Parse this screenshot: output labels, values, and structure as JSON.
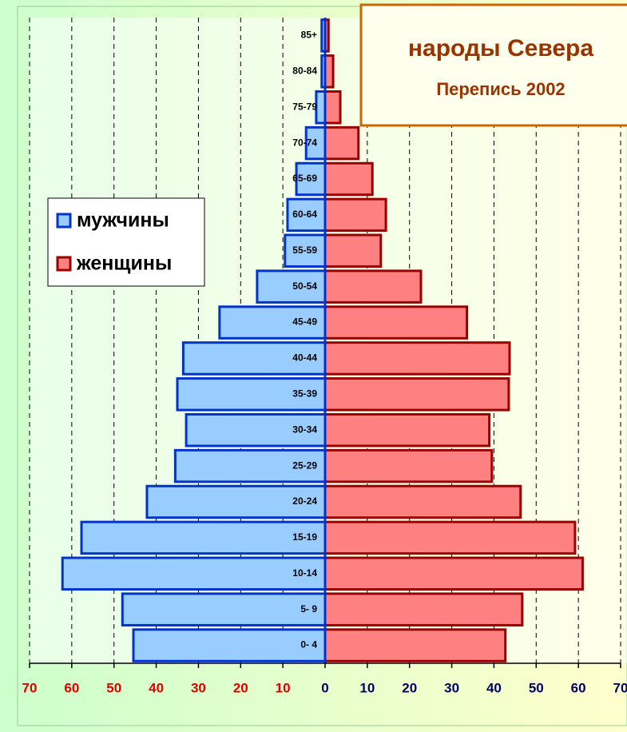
{
  "chart_data": {
    "type": "pyramid",
    "title": "народы Севера",
    "subtitle": "Перепись 2002",
    "categories": [
      "0- 4",
      "5- 9",
      "10-14",
      "15-19",
      "20-24",
      "25-29",
      "30-34",
      "35-39",
      "40-44",
      "45-49",
      "50-54",
      "55-59",
      "60-64",
      "65-69",
      "70-74",
      "75-79",
      "80-84",
      "85+"
    ],
    "series": [
      {
        "name": "мужчины",
        "color": "#99ccff",
        "edge": "#0033cc",
        "values": [
          -45.4,
          -48,
          -62.2,
          -57.7,
          -42.2,
          -35.5,
          -32.9,
          -35,
          -33.6,
          -25,
          -16.1,
          -9.5,
          -8.9,
          -6.8,
          -4.5,
          -2.1,
          -0.8,
          -0.8
        ]
      },
      {
        "name": "женщины",
        "color": "#ff8080",
        "edge": "#990000",
        "values": [
          42.7,
          46.7,
          61,
          59.2,
          46.3,
          39.5,
          38.9,
          43.5,
          43.7,
          33.6,
          22.7,
          13.2,
          14.4,
          11.2,
          7.9,
          3.6,
          1.9,
          0.8
        ]
      }
    ],
    "xlim": [
      -70,
      70
    ],
    "xticks": [
      {
        "value": -70,
        "label": "70"
      },
      {
        "value": -60,
        "label": "60"
      },
      {
        "value": -50,
        "label": "50"
      },
      {
        "value": -40,
        "label": "40"
      },
      {
        "value": -30,
        "label": "30"
      },
      {
        "value": -20,
        "label": "20"
      },
      {
        "value": -10,
        "label": "10"
      },
      0,
      10,
      20,
      30,
      40,
      50,
      60,
      70
    ],
    "grid": true,
    "legend": "left"
  }
}
